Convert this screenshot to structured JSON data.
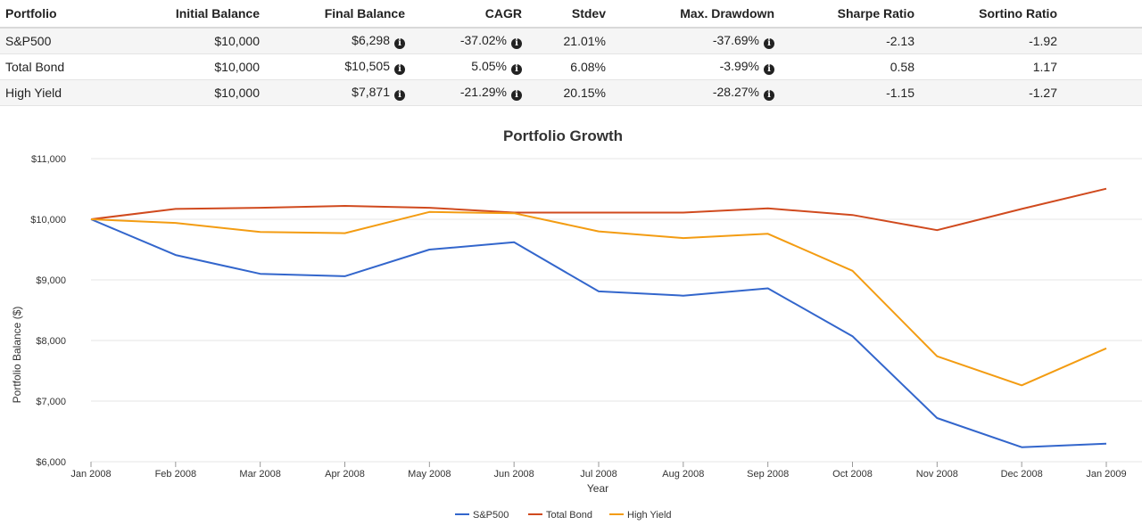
{
  "table": {
    "headers": [
      "Portfolio",
      "Initial Balance",
      "Final Balance",
      "CAGR",
      "Stdev",
      "Max. Drawdown",
      "Sharpe Ratio",
      "Sortino Ratio"
    ],
    "rows": [
      {
        "portfolio": "S&P500",
        "initial": "$10,000",
        "final": "$6,298",
        "cagr": "-37.02%",
        "stdev": "21.01%",
        "drawdown": "-37.69%",
        "sharpe": "-2.13",
        "sortino": "-1.92"
      },
      {
        "portfolio": "Total Bond",
        "initial": "$10,000",
        "final": "$10,505",
        "cagr": "5.05%",
        "stdev": "6.08%",
        "drawdown": "-3.99%",
        "sharpe": "0.58",
        "sortino": "1.17"
      },
      {
        "portfolio": "High Yield",
        "initial": "$10,000",
        "final": "$7,871",
        "cagr": "-21.29%",
        "stdev": "20.15%",
        "drawdown": "-28.27%",
        "sharpe": "-1.15",
        "sortino": "-1.27"
      }
    ],
    "info_icon": "info-circle-icon"
  },
  "chart_data": {
    "type": "line",
    "title": "Portfolio Growth",
    "xlabel": "Year",
    "ylabel": "Portfolio Balance ($)",
    "ylim": [
      6000,
      11000
    ],
    "y_ticks": [
      6000,
      7000,
      8000,
      9000,
      10000,
      11000
    ],
    "y_tick_labels": [
      "$6,000",
      "$7,000",
      "$8,000",
      "$9,000",
      "$10,000",
      "$11,000"
    ],
    "categories": [
      "Jan 2008",
      "Feb 2008",
      "Mar 2008",
      "Apr 2008",
      "May 2008",
      "Jun 2008",
      "Jul 2008",
      "Aug 2008",
      "Sep 2008",
      "Oct 2008",
      "Nov 2008",
      "Dec 2008",
      "Jan 2009"
    ],
    "grid": true,
    "legend_position": "bottom-center",
    "series": [
      {
        "name": "S&P500",
        "color": "#3366cc",
        "values": [
          10000,
          9410,
          9100,
          9060,
          9500,
          9620,
          8810,
          8740,
          8860,
          8070,
          6720,
          6240,
          6298
        ]
      },
      {
        "name": "Total Bond",
        "color": "#d04a1e",
        "values": [
          10000,
          10170,
          10190,
          10220,
          10190,
          10110,
          10110,
          10110,
          10180,
          10070,
          9820,
          10170,
          10505
        ]
      },
      {
        "name": "High Yield",
        "color": "#f39c12",
        "values": [
          10000,
          9940,
          9790,
          9770,
          10120,
          10100,
          9800,
          9690,
          9760,
          9150,
          7740,
          7260,
          7871
        ]
      }
    ]
  }
}
